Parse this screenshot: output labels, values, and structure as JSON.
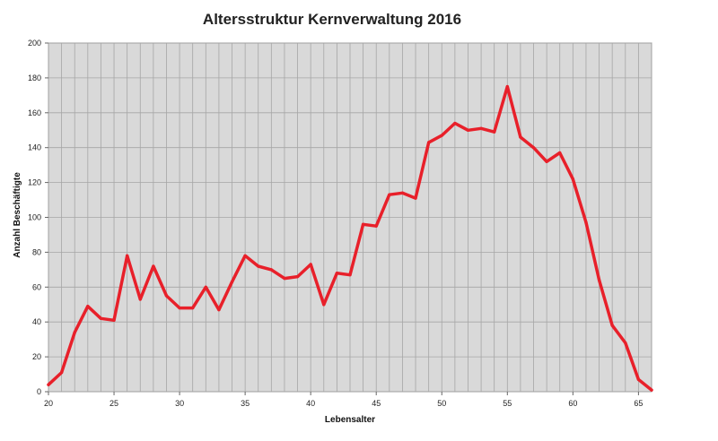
{
  "chart_data": {
    "type": "line",
    "title": "Altersstruktur Kernverwaltung 2016",
    "xlabel": "Lebensalter",
    "ylabel": "Anzahl Beschäftigte",
    "xlim": [
      20,
      66
    ],
    "ylim": [
      0,
      200
    ],
    "x_ticks": [
      20,
      25,
      30,
      35,
      40,
      45,
      50,
      55,
      60,
      65
    ],
    "y_ticks": [
      0,
      20,
      40,
      60,
      80,
      100,
      120,
      140,
      160,
      180,
      200
    ],
    "grid": true,
    "line_color": "#e8202a",
    "plot_background": "#d9d9d9",
    "x": [
      20,
      21,
      22,
      23,
      24,
      25,
      26,
      27,
      28,
      29,
      30,
      31,
      32,
      33,
      34,
      35,
      36,
      37,
      38,
      39,
      40,
      41,
      42,
      43,
      44,
      45,
      46,
      47,
      48,
      49,
      50,
      51,
      52,
      53,
      54,
      55,
      56,
      57,
      58,
      59,
      60,
      61,
      62,
      63,
      64,
      65,
      66
    ],
    "values": [
      4,
      11,
      34,
      49,
      42,
      41,
      78,
      53,
      72,
      55,
      48,
      48,
      60,
      47,
      63,
      78,
      72,
      70,
      65,
      66,
      73,
      50,
      68,
      67,
      96,
      95,
      113,
      114,
      111,
      143,
      147,
      154,
      150,
      151,
      149,
      175,
      146,
      140,
      132,
      137,
      122,
      97,
      64,
      38,
      28,
      7,
      1
    ]
  }
}
